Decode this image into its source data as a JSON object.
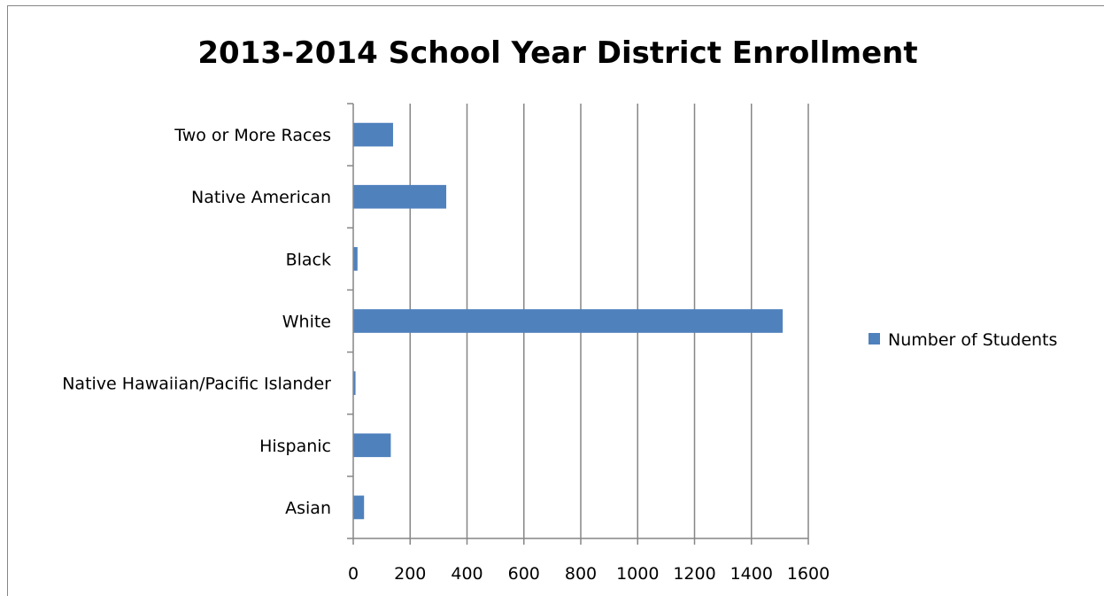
{
  "chart_data": {
    "type": "bar",
    "orientation": "horizontal",
    "title": "2013-2014 School Year District Enrollment",
    "xlabel": "",
    "ylabel": "",
    "categories": [
      "Asian",
      "Hispanic",
      "Native Hawaiian/Pacific Islander",
      "White",
      "Black",
      "Native American",
      "Two or More Races"
    ],
    "series": [
      {
        "name": "Number of Students",
        "color": "#4F81BD",
        "values": [
          38,
          132,
          8,
          1510,
          15,
          327,
          140
        ]
      }
    ],
    "xlim": [
      0,
      1600
    ],
    "xticks": [
      0,
      200,
      400,
      600,
      800,
      1000,
      1200,
      1400,
      1600
    ],
    "grid": "vertical",
    "legend_position": "right"
  }
}
